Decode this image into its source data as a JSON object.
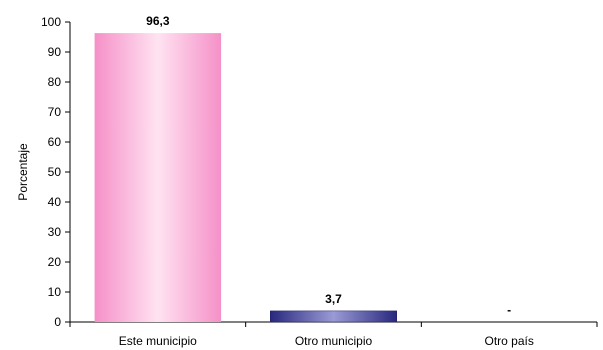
{
  "chart_data": {
    "type": "bar",
    "categories": [
      "Este municipio",
      "Otro  municipio",
      "Otro país"
    ],
    "values": [
      96.3,
      3.7,
      0
    ],
    "data_labels": [
      "96,3",
      "3,7",
      "-"
    ],
    "ylabel": "Porcentaje",
    "ylim": [
      0,
      100
    ],
    "yticks": [
      0,
      10,
      20,
      30,
      40,
      50,
      60,
      70,
      80,
      90,
      100
    ],
    "ytick_labels": [
      "0",
      "10",
      "20",
      "30",
      "40",
      "50",
      "60",
      "70",
      "80",
      "90",
      "100"
    ],
    "grid": false,
    "legend": "none",
    "bar_colors": [
      "#f9a8d4",
      "#3b3b9a",
      "#cccccc"
    ]
  }
}
